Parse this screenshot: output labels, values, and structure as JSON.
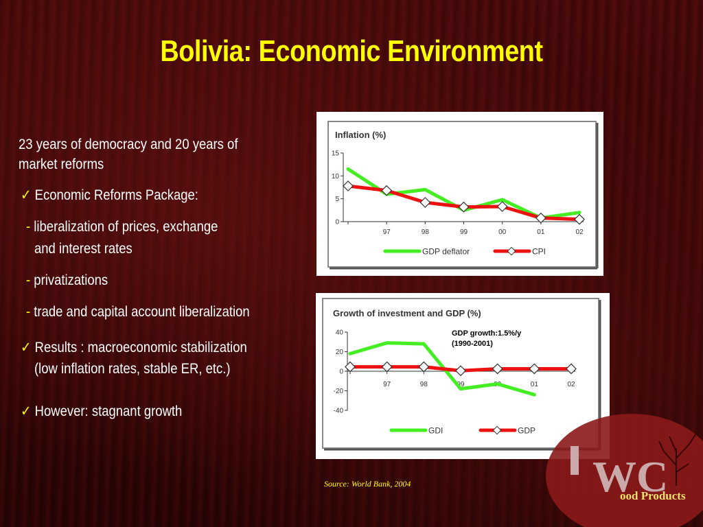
{
  "title": "Bolivia: Economic Environment",
  "bullets": {
    "intro_line1": "23 years of democracy and 20 years of",
    "intro_line2": "market reforms",
    "check_mark": "✓",
    "dash": "-",
    "reforms": "Economic Reforms Package:",
    "sub1_line1": "liberalization of prices, exchange",
    "sub1_line2": "and interest rates",
    "sub2": "privatizations",
    "sub3": "trade and capital account liberalization",
    "results_line1": "Results : macroeconomic stabilization",
    "results_line2": "(low inflation rates, stable ER, etc.)",
    "however": "However: stagnant growth"
  },
  "source": "Source: World Bank, 2004",
  "logo": {
    "letters_big": "WC",
    "tagline": "ood Products",
    "colors": {
      "disc": "#8b1a1a",
      "letters": "#c9a9a9"
    }
  },
  "colors": {
    "gdp_deflator": "#44ee22",
    "cpi": "#ee1111",
    "gdi": "#44ee22",
    "gdp": "#ee1111",
    "title": "#ffff00"
  },
  "chart_data": [
    {
      "type": "line",
      "title": "Inflation (%)",
      "categories": [
        "",
        "97",
        "98",
        "99",
        "00",
        "01",
        "02"
      ],
      "ylim": [
        0,
        15
      ],
      "yticks": [
        0,
        5,
        10,
        15
      ],
      "series": [
        {
          "name": "GDP deflator",
          "values": [
            11.5,
            6,
            7,
            2.5,
            4.8,
            0.8,
            2
          ]
        },
        {
          "name": "CPI",
          "values": [
            7.8,
            6.8,
            4.2,
            3.2,
            3.3,
            0.8,
            0.5
          ]
        }
      ]
    },
    {
      "type": "line",
      "title": "Growth of investment and GDP (%)",
      "annotation_line1": "GDP growth:1.5%/y",
      "annotation_line2": "(1990-2001)",
      "categories": [
        "",
        "97",
        "98",
        "99",
        "00",
        "01",
        "02"
      ],
      "ylim": [
        -40,
        40
      ],
      "yticks": [
        -40,
        -20,
        0,
        20,
        40
      ],
      "series": [
        {
          "name": "GDI",
          "values": [
            18,
            29,
            28,
            -18,
            -13,
            -24,
            null
          ]
        },
        {
          "name": "GDP",
          "values": [
            4.5,
            4.5,
            4.5,
            0.5,
            2.5,
            2.5,
            2.5
          ]
        }
      ]
    }
  ]
}
